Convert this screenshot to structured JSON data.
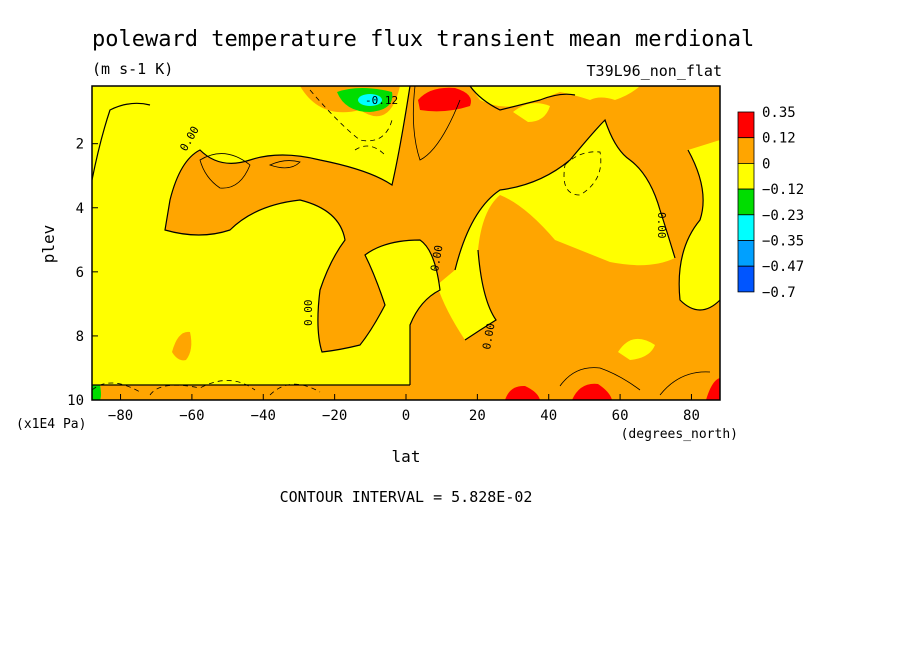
{
  "chart_data": {
    "type": "heatmap",
    "title": "poleward temperature flux transient mean merdional",
    "units": "(m s-1 K)",
    "run_label": "T39L96_non_flat",
    "xlabel": "lat",
    "x_units": "(degrees_north)",
    "ylabel": "plev",
    "y_units": "(x1E4 Pa)",
    "x_ticks": [
      "-80",
      "-60",
      "-40",
      "-20",
      "0",
      "20",
      "40",
      "60",
      "80"
    ],
    "y_ticks": [
      "2",
      "4",
      "6",
      "8",
      "10"
    ],
    "xlim": [
      -88,
      88
    ],
    "ylim": [
      0.2,
      10
    ],
    "footer": "CONTOUR INTERVAL = 5.828E-02",
    "contour_labels": [
      "0.00",
      "0.00",
      "0.00",
      "0.00",
      "0.00",
      "0.00",
      "-0.12"
    ],
    "colorbar": {
      "labels": [
        "0.35",
        "0.12",
        "0",
        "−0.12",
        "−0.23",
        "−0.35",
        "−0.47",
        "−0.7"
      ],
      "colors": [
        "#ff0000",
        "#ffa500",
        "#ffff00",
        "#00dd00",
        "#00ffff",
        "#00a0ff",
        "#0055ff"
      ]
    }
  }
}
